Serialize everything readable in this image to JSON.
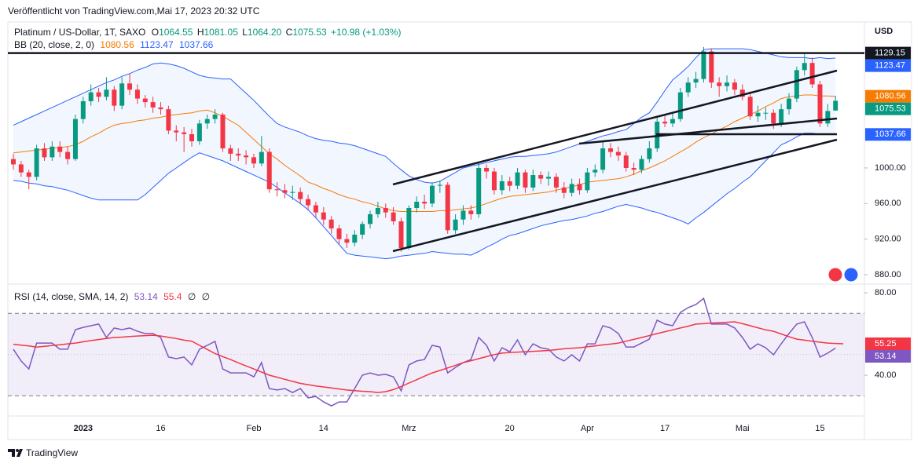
{
  "header": {
    "published": "Veröffentlicht von TradingView.com,Mai 17, 2023 20:32 UTC"
  },
  "footer": {
    "brand": "TradingView"
  },
  "chart_data": [
    {
      "type": "candlestick",
      "title": "Platinum / US-Dollar, 1T, SAXO",
      "ohlc_labels": [
        "O",
        "H",
        "L",
        "C"
      ],
      "ohlc_values": [
        "1064.55",
        "1081.05",
        "1064.20",
        "1075.53"
      ],
      "change": "+10.98 (+1.03%)",
      "indicator_title": "BB (20, close, 2, 0)",
      "currency": "USD",
      "up_color": "#089981",
      "down_color": "#f23645",
      "categories": [
        null,
        null,
        null,
        null,
        null,
        null,
        null,
        null,
        null,
        "2023",
        null,
        null,
        null,
        null,
        null,
        null,
        null,
        null,
        null,
        "16",
        null,
        null,
        null,
        null,
        null,
        null,
        null,
        null,
        null,
        null,
        null,
        "Feb",
        null,
        null,
        null,
        null,
        null,
        null,
        null,
        null,
        "14",
        null,
        null,
        null,
        null,
        null,
        null,
        null,
        null,
        null,
        null,
        "Mrz",
        null,
        null,
        null,
        null,
        null,
        null,
        null,
        null,
        null,
        null,
        null,
        null,
        "20",
        null,
        null,
        null,
        null,
        null,
        null,
        null,
        null,
        null,
        "Apr",
        null,
        null,
        null,
        null,
        null,
        null,
        null,
        null,
        null,
        "17",
        null,
        null,
        null,
        null,
        null,
        null,
        null,
        null,
        null,
        "Mai",
        null,
        null,
        null,
        null,
        null,
        null,
        null,
        null,
        null,
        "15",
        null,
        null
      ],
      "open": [
        1010,
        1004,
        995,
        990,
        1022,
        1012,
        1024,
        1018,
        1010,
        1055,
        1075,
        1085,
        1080,
        1088,
        1070,
        1095,
        1088,
        1078,
        1074,
        1068,
        1066,
        1042,
        1040,
        1038,
        1030,
        1050,
        1055,
        1060,
        1022,
        1016,
        1014,
        1012,
        1005,
        1018,
        976,
        975,
        972,
        973,
        965,
        958,
        950,
        942,
        932,
        920,
        916,
        925,
        937,
        948,
        955,
        950,
        940,
        910,
        955,
        962,
        960,
        980,
        981,
        930,
        942,
        952,
        948,
        1000,
        996,
        975,
        985,
        980,
        995,
        978,
        992,
        988,
        990,
        978,
        972,
        982,
        975,
        995,
        998,
        1022,
        1018,
        1014,
        1000,
        998,
        1010,
        1022,
        1052,
        1050,
        1055,
        1085,
        1096,
        1100,
        1131,
        1096,
        1092,
        1096,
        1088,
        1080,
        1058,
        1062,
        1062,
        1050,
        1066,
        1078,
        1110,
        1118,
        1094,
        1050,
        1064.55
      ],
      "high": [
        1016,
        1008,
        998,
        1026,
        1028,
        1030,
        1030,
        1024,
        1060,
        1080,
        1094,
        1090,
        1102,
        1092,
        1102,
        1106,
        1094,
        1082,
        1080,
        1074,
        1070,
        1048,
        1046,
        1044,
        1054,
        1060,
        1066,
        1062,
        1026,
        1022,
        1020,
        1016,
        1036,
        1022,
        984,
        982,
        980,
        978,
        970,
        962,
        956,
        946,
        936,
        926,
        930,
        940,
        952,
        962,
        960,
        956,
        944,
        958,
        968,
        970,
        984,
        986,
        984,
        948,
        958,
        958,
        1006,
        1004,
        1000,
        992,
        990,
        1000,
        998,
        998,
        996,
        996,
        994,
        984,
        988,
        988,
        1000,
        1004,
        1030,
        1028,
        1024,
        1018,
        1006,
        1014,
        1030,
        1058,
        1060,
        1062,
        1090,
        1102,
        1108,
        1136,
        1134,
        1102,
        1104,
        1100,
        1094,
        1086,
        1070,
        1068,
        1066,
        1072,
        1084,
        1114,
        1128,
        1124,
        1098,
        1072,
        1081.05
      ],
      "low": [
        998,
        990,
        976,
        986,
        1008,
        1008,
        1012,
        1004,
        1008,
        1050,
        1070,
        1074,
        1076,
        1064,
        1066,
        1082,
        1072,
        1068,
        1062,
        1060,
        1038,
        1030,
        1018,
        1024,
        1026,
        1044,
        1050,
        1018,
        1008,
        1008,
        1004,
        1000,
        1002,
        972,
        968,
        966,
        964,
        960,
        952,
        944,
        936,
        926,
        914,
        910,
        912,
        920,
        932,
        944,
        944,
        936,
        906,
        908,
        950,
        954,
        956,
        972,
        926,
        926,
        936,
        942,
        944,
        988,
        970,
        970,
        974,
        976,
        972,
        974,
        982,
        980,
        972,
        966,
        968,
        970,
        972,
        990,
        994,
        1012,
        1008,
        996,
        992,
        994,
        1006,
        1018,
        1046,
        1046,
        1052,
        1080,
        1090,
        1096,
        1090,
        1080,
        1086,
        1082,
        1076,
        1054,
        1052,
        1054,
        1044,
        1046,
        1060,
        1074,
        1104,
        1090,
        1046,
        1046,
        1064.2
      ],
      "close": [
        1004,
        995,
        990,
        1022,
        1012,
        1024,
        1018,
        1010,
        1055,
        1075,
        1085,
        1080,
        1088,
        1070,
        1095,
        1088,
        1078,
        1074,
        1068,
        1066,
        1042,
        1040,
        1038,
        1030,
        1050,
        1055,
        1060,
        1022,
        1016,
        1014,
        1012,
        1005,
        1018,
        976,
        975,
        972,
        973,
        965,
        958,
        950,
        942,
        932,
        920,
        916,
        925,
        937,
        948,
        955,
        950,
        940,
        910,
        955,
        962,
        960,
        980,
        981,
        930,
        942,
        952,
        948,
        1000,
        996,
        975,
        985,
        980,
        995,
        978,
        992,
        988,
        990,
        978,
        972,
        982,
        975,
        995,
        998,
        1022,
        1018,
        1014,
        1000,
        998,
        1010,
        1022,
        1052,
        1050,
        1055,
        1085,
        1096,
        1100,
        1131,
        1096,
        1092,
        1096,
        1088,
        1080,
        1058,
        1062,
        1062,
        1050,
        1066,
        1078,
        1110,
        1118,
        1094,
        1050,
        1064,
        1075.53
      ],
      "overlays": [
        {
          "color": "#f57c00",
          "values": [
            1017,
            1018,
            1019,
            1020,
            1021,
            1022,
            1023,
            1024,
            1026,
            1030,
            1035,
            1039,
            1044,
            1048,
            1050,
            1051,
            1053,
            1054,
            1056,
            1057,
            1059,
            1060,
            1061,
            1062,
            1064,
            1065,
            1062,
            1058,
            1053,
            1048,
            1040,
            1032,
            1024,
            1016,
            1010,
            1003,
            997,
            991,
            984,
            981,
            977,
            974,
            970,
            967,
            965,
            962,
            960,
            957,
            954,
            952,
            951,
            951,
            951,
            951,
            951,
            952,
            952,
            953,
            954,
            955,
            957,
            960,
            963,
            966,
            968,
            969,
            970,
            971,
            972,
            973,
            975,
            977,
            979,
            981,
            984,
            985,
            986,
            987,
            988,
            990,
            993,
            997,
            1000,
            1004,
            1008,
            1013,
            1018,
            1023,
            1029,
            1034,
            1038,
            1043,
            1047,
            1052,
            1056,
            1060,
            1064,
            1069,
            1073,
            1078,
            1080,
            1081,
            1082,
            1082,
            1081,
            1081,
            1080.56
          ]
        },
        {
          "color": "#2962ff",
          "values": [
            1048,
            1052,
            1056,
            1060,
            1064,
            1068,
            1072,
            1076,
            1080,
            1084,
            1088,
            1092,
            1096,
            1099,
            1103,
            1106,
            1110,
            1113,
            1117,
            1118,
            1117,
            1115,
            1112,
            1108,
            1104,
            1102,
            1101,
            1100,
            1100,
            1092,
            1084,
            1076,
            1067,
            1058,
            1050,
            1046,
            1043,
            1040,
            1036,
            1033,
            1031,
            1030,
            1028,
            1027,
            1025,
            1022,
            1019,
            1016,
            1013,
            1005,
            998,
            991,
            987,
            984,
            983,
            985,
            990,
            995,
            1000,
            1002,
            1004,
            1006,
            1008,
            1010,
            1012,
            1013,
            1013,
            1014,
            1015,
            1016,
            1018,
            1021,
            1024,
            1027,
            1030,
            1033,
            1036,
            1038,
            1041,
            1043,
            1050,
            1057,
            1062,
            1074,
            1087,
            1099,
            1106,
            1114,
            1124,
            1133,
            1134,
            1134,
            1134,
            1134,
            1134,
            1133,
            1131,
            1129,
            1127,
            1125,
            1124,
            1124,
            1124,
            1123,
            1124,
            1123,
            1123.47
          ]
        },
        {
          "color": "#2962ff",
          "values": [
            986,
            985,
            983,
            982,
            980,
            979,
            977,
            975,
            972,
            969,
            966,
            964,
            964,
            964,
            964,
            964,
            964,
            970,
            978,
            986,
            994,
            1000,
            1006,
            1012,
            1017,
            1014,
            1011,
            1008,
            1004,
            1000,
            996,
            992,
            988,
            984,
            978,
            972,
            966,
            960,
            953,
            944,
            934,
            924,
            914,
            904,
            902,
            901,
            900,
            899,
            898,
            899,
            901,
            902,
            903,
            904,
            906,
            905,
            904,
            903,
            903,
            902,
            906,
            911,
            915,
            920,
            924,
            926,
            929,
            932,
            935,
            937,
            939,
            941,
            942,
            944,
            946,
            949,
            951,
            954,
            957,
            959,
            957,
            955,
            952,
            950,
            947,
            944,
            941,
            937,
            944,
            950,
            957,
            964,
            971,
            977,
            984,
            990,
            999,
            1008,
            1017,
            1026,
            1030,
            1035,
            1039,
            1039,
            1038,
            1038,
            1037.66
          ]
        }
      ],
      "band_fill": "#2962ff",
      "hline": {
        "value": 1129.15,
        "color": "#131722"
      },
      "ylim": [
        869.4,
        1164.1
      ],
      "yticks": [
        {
          "value": 1000,
          "label": "1000.00"
        },
        {
          "value": 960,
          "label": "960.00"
        },
        {
          "value": 920,
          "label": "920.00"
        },
        {
          "value": 880,
          "label": "880.00"
        }
      ]
    },
    {
      "type": "line",
      "title": "RSI (14, close, SMA, 14, 2)",
      "legend_symbols": [
        "∅",
        "∅"
      ],
      "series": [
        {
          "color": "#7e57c2",
          "values": [
            52.6,
            46.9,
            43.0,
            55.6,
            55.6,
            55.6,
            52.6,
            52.6,
            62.1,
            63.2,
            64.0,
            64.8,
            58.3,
            62.9,
            62.1,
            62.9,
            61.3,
            60.2,
            60.2,
            58.3,
            48.8,
            48.0,
            48.8,
            45.0,
            52.6,
            54.5,
            56.4,
            43.0,
            41.1,
            41.1,
            41.1,
            39.2,
            46.1,
            33.5,
            32.8,
            33.5,
            31.6,
            33.5,
            29.0,
            29.7,
            27.0,
            25.1,
            27.0,
            27.0,
            33.5,
            40.0,
            41.1,
            40.0,
            40.4,
            39.2,
            32.4,
            45.0,
            46.9,
            47.6,
            54.5,
            53.7,
            41.1,
            43.8,
            46.1,
            47.6,
            58.3,
            54.5,
            46.9,
            53.3,
            51.4,
            57.1,
            49.9,
            55.2,
            53.3,
            52.6,
            48.8,
            46.9,
            49.9,
            46.9,
            55.2,
            55.2,
            64.0,
            62.9,
            60.2,
            53.7,
            53.7,
            55.6,
            57.5,
            66.7,
            64.8,
            64.0,
            70.5,
            72.8,
            74.3,
            77.3,
            64.8,
            64.8,
            64.8,
            62.9,
            58.3,
            52.6,
            55.2,
            53.3,
            49.9,
            55.2,
            60.2,
            64.8,
            65.9,
            58.3,
            48.8,
            50.7,
            53.14
          ]
        },
        {
          "color": "#f23645",
          "values": [
            55.0,
            54.6,
            54.2,
            53.6,
            54,
            54.4,
            54.8,
            55.2,
            55.6,
            56.2,
            56.8,
            57.3,
            57.8,
            58.3,
            58.5,
            58.8,
            59.0,
            59.2,
            59.4,
            59,
            58.4,
            57.8,
            57,
            56.5,
            54.5,
            52.5,
            50.5,
            49,
            47.6,
            46,
            44.5,
            43,
            41.5,
            40,
            39,
            38,
            37,
            36,
            35.4,
            34.8,
            34.3,
            33.8,
            33.3,
            32.8,
            32.5,
            32.2,
            32,
            31.6,
            32,
            33,
            34.5,
            36.2,
            37.8,
            39.5,
            41.1,
            42.3,
            43.5,
            44.8,
            46.1,
            47,
            48,
            49,
            50,
            50.7,
            51,
            51.2,
            51.4,
            51.6,
            51.8,
            52,
            52.4,
            52.8,
            53.1,
            53.3,
            53.8,
            54.2,
            54.7,
            55.1,
            55.6,
            56.5,
            57.4,
            58.3,
            59.2,
            60.2,
            61.1,
            62,
            62.9,
            63.8,
            64.8,
            65,
            65.3,
            65.5,
            65.7,
            65.9,
            65,
            64,
            63,
            62,
            61.3,
            60,
            58.7,
            57.5,
            57,
            56.5,
            56,
            55.6,
            55.4,
            55.25
          ]
        }
      ],
      "band": [
        30,
        70
      ],
      "band_color": "#7e57c2",
      "midline": 50,
      "ylim": [
        20.2,
        84.2
      ],
      "yticks": [
        {
          "value": 80,
          "label": "80.00"
        },
        {
          "value": 40,
          "label": "40.00"
        }
      ]
    }
  ]
}
